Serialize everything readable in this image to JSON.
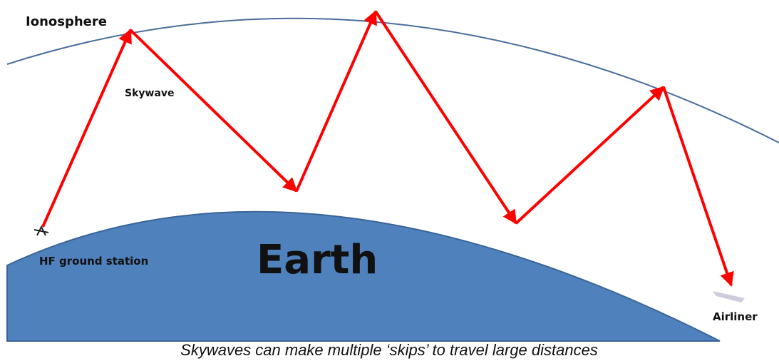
{
  "labels": {
    "ionosphere": "Ionosphere",
    "skywave": "Skywave",
    "station": "HF ground station",
    "earth": "Earth",
    "airliner": "Airliner"
  },
  "caption": "Skywaves can make multiple ‘skips’ to travel large distances"
}
